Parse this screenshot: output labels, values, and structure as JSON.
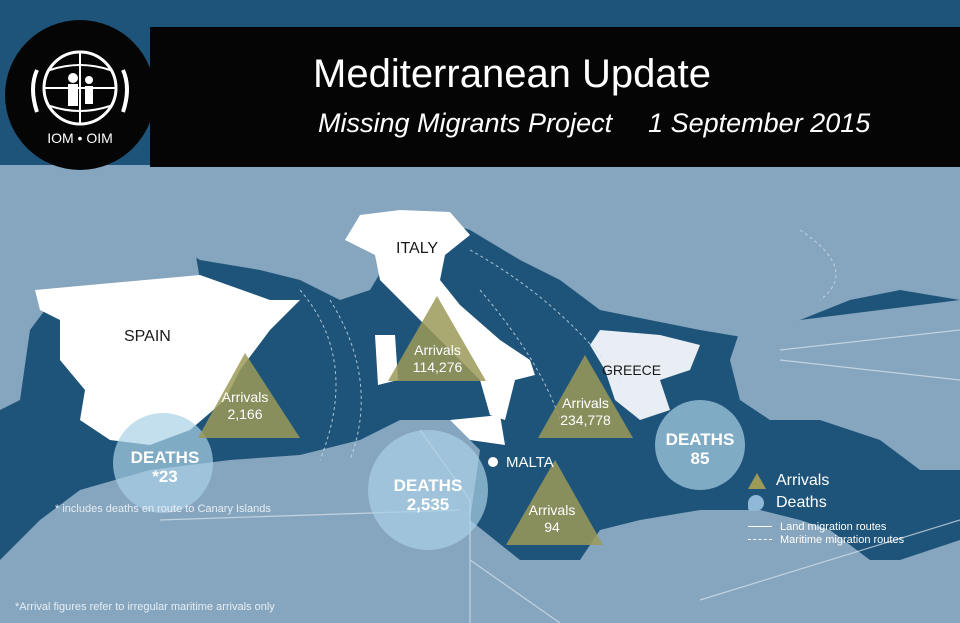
{
  "header": {
    "title": "Mediterranean Update",
    "subtitle": "Missing Migrants Project",
    "date": "1 September 2015"
  },
  "logo": {
    "text": "IOM • OIM"
  },
  "countries": {
    "spain": "SPAIN",
    "italy": "ITALY",
    "greece": "GREECE",
    "malta": "MALTA"
  },
  "arrivals": [
    {
      "route": "western",
      "label": "Arrivals",
      "value": "2,166"
    },
    {
      "route": "italy",
      "label": "Arrivals",
      "value": "114,276"
    },
    {
      "route": "greece",
      "label": "Arrivals",
      "value": "234,778"
    },
    {
      "route": "malta",
      "label": "Arrivals",
      "value": "94"
    }
  ],
  "deaths": [
    {
      "route": "western",
      "label": "DEATHS",
      "value": "*23"
    },
    {
      "route": "central",
      "label": "DEATHS",
      "value": "2,535"
    },
    {
      "route": "eastern",
      "label": "DEATHS",
      "value": "85"
    }
  ],
  "notes": {
    "canary": "* includes deaths en route to Canary Islands",
    "arrivals": "*Arrival figures refer to irregular maritime arrivals only"
  },
  "legend": {
    "arrivals": "Arrivals",
    "deaths": "Deaths",
    "land": "Land migration  routes",
    "maritime": "Maritime migration routes"
  },
  "colors": {
    "sea": "#1e5479",
    "land": "#86a5be",
    "arrivals": "#9b9a58",
    "deaths": "#a9d0e6",
    "header": "#050505"
  }
}
